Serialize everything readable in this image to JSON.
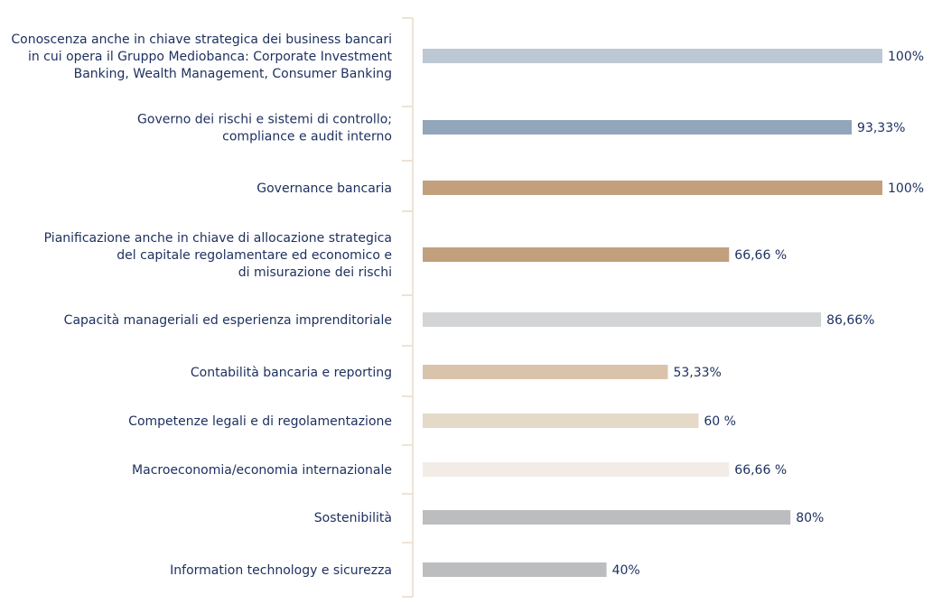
{
  "chart_data": {
    "type": "bar",
    "orientation": "horizontal",
    "xlim": [
      0,
      100
    ],
    "grid": false,
    "categories": [
      [
        "Conoscenza anche in chiave strategica dei business bancari",
        "in cui opera il Gruppo Mediobanca: Corporate Investment",
        "Banking, Wealth Management, Consumer Banking"
      ],
      [
        "Governo dei rischi e sistemi di controllo;",
        "compliance e audit interno"
      ],
      [
        "Governance bancaria"
      ],
      [
        "Pianificazione anche in chiave di allocazione strategica",
        "del capitale regolamentare ed economico e",
        "di misurazione dei rischi"
      ],
      [
        "Capacità manageriali ed esperienza imprenditoriale"
      ],
      [
        "Contabilità bancaria e reporting"
      ],
      [
        "Competenze legali e di regolamentazione"
      ],
      [
        "Macroeconomia/economia internazionale"
      ],
      [
        "Sostenibilità"
      ],
      [
        "Information technology e sicurezza"
      ]
    ],
    "values": [
      100,
      93.33,
      100,
      66.66,
      86.66,
      53.33,
      60,
      66.66,
      80,
      40
    ],
    "value_labels": [
      "100%",
      "93,33%",
      "100%",
      "66,66 %",
      "86,66%",
      "53,33%",
      "60 %",
      "66,66 %",
      "80%",
      "40%"
    ],
    "colors": [
      "#bcc8d3",
      "#92a5bb",
      "#c2a07d",
      "#c2a07d",
      "#d3d4d6",
      "#d9c3ab",
      "#e5d9c8",
      "#f3ebe6",
      "#bcbdbf",
      "#bcbdbf"
    ],
    "axis_color": "#ede3d6",
    "text_color": "#1c2f5e"
  }
}
